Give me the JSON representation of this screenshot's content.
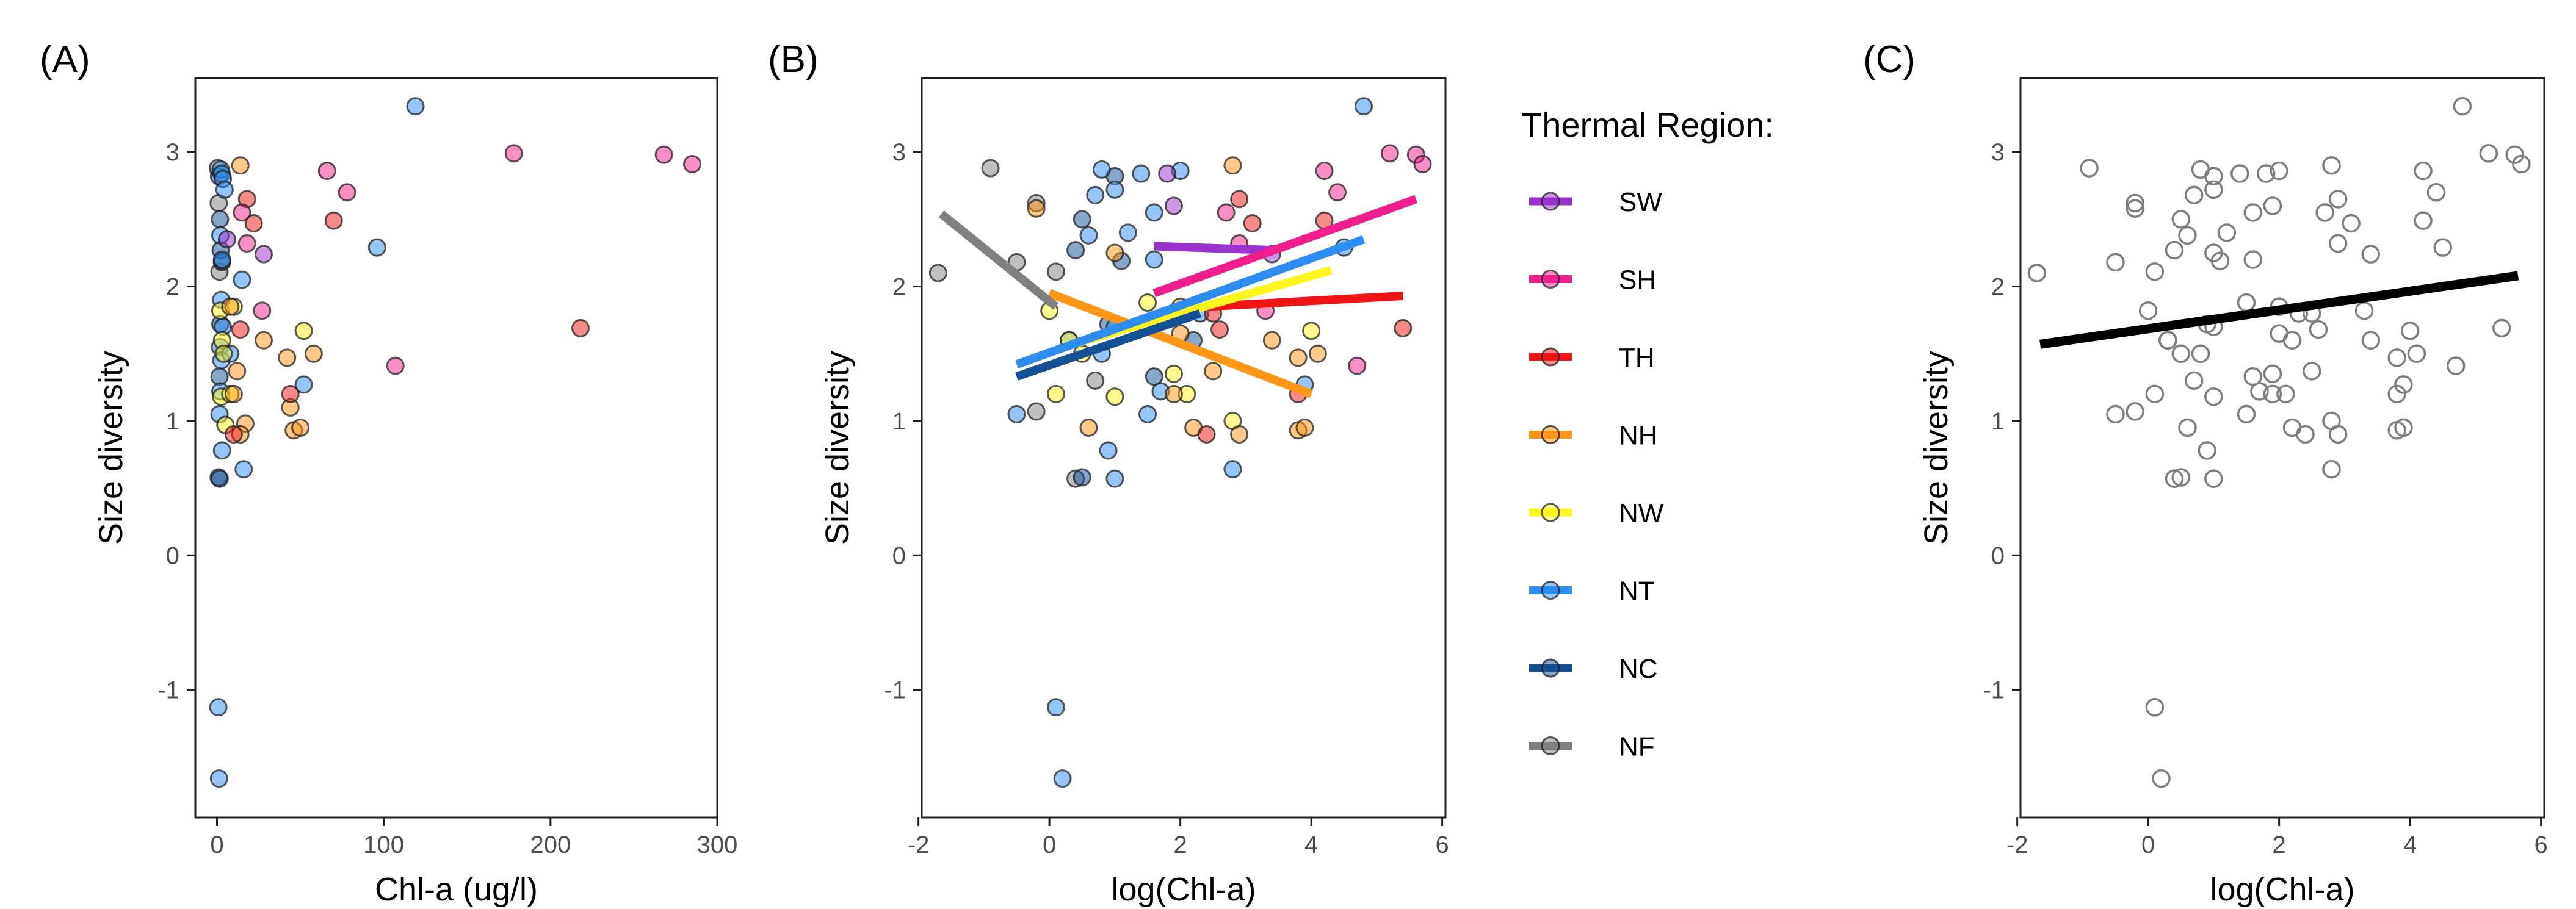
{
  "chart_data": [
    {
      "panel": "(A)",
      "type": "scatter",
      "xlabel": "Chl-a (ug/l)",
      "ylabel": "Size diversity",
      "xlim": [
        -13,
        300
      ],
      "ylim": [
        -1.95,
        3.55
      ],
      "xticks": [
        0,
        100,
        200,
        300
      ],
      "yticks": [
        -1,
        0,
        1,
        2,
        3
      ],
      "grid": false,
      "points": [
        {
          "x": 0.5,
          "y": 2.88,
          "region": "NF"
        },
        {
          "x": 1.0,
          "y": 2.62,
          "region": "NF"
        },
        {
          "x": 1.5,
          "y": 2.11,
          "region": "NF"
        },
        {
          "x": 3.0,
          "y": 2.18,
          "region": "NF"
        },
        {
          "x": 1.2,
          "y": 2.82,
          "region": "NC"
        },
        {
          "x": 1.8,
          "y": 2.5,
          "region": "NC"
        },
        {
          "x": 2.2,
          "y": 2.27,
          "region": "NC"
        },
        {
          "x": 3.0,
          "y": 2.19,
          "region": "NC"
        },
        {
          "x": 2.0,
          "y": 1.72,
          "region": "NC"
        },
        {
          "x": 1.5,
          "y": 1.33,
          "region": "NC"
        },
        {
          "x": 1.0,
          "y": 0.58,
          "region": "NC"
        },
        {
          "x": 1.6,
          "y": 0.57,
          "region": "NC"
        },
        {
          "x": 2.2,
          "y": 2.87,
          "region": "NT"
        },
        {
          "x": 2.8,
          "y": 2.84,
          "region": "NT"
        },
        {
          "x": 3.5,
          "y": 2.8,
          "region": "NT"
        },
        {
          "x": 4.5,
          "y": 2.72,
          "region": "NT"
        },
        {
          "x": 2.0,
          "y": 2.38,
          "region": "NT"
        },
        {
          "x": 3.0,
          "y": 2.2,
          "region": "NT"
        },
        {
          "x": 2.5,
          "y": 1.9,
          "region": "NT"
        },
        {
          "x": 3.5,
          "y": 1.7,
          "region": "NT"
        },
        {
          "x": 1.8,
          "y": 1.55,
          "region": "NT"
        },
        {
          "x": 2.6,
          "y": 1.45,
          "region": "NT"
        },
        {
          "x": 8.0,
          "y": 1.5,
          "region": "NT"
        },
        {
          "x": 2.0,
          "y": 1.22,
          "region": "NT"
        },
        {
          "x": 1.5,
          "y": 1.05,
          "region": "NT"
        },
        {
          "x": 3.0,
          "y": 0.78,
          "region": "NT"
        },
        {
          "x": 16.0,
          "y": 0.64,
          "region": "NT"
        },
        {
          "x": 15.0,
          "y": 2.05,
          "region": "NT"
        },
        {
          "x": 52.0,
          "y": 1.27,
          "region": "NT"
        },
        {
          "x": 96.0,
          "y": 2.29,
          "region": "NT"
        },
        {
          "x": 119.0,
          "y": 3.34,
          "region": "NT"
        },
        {
          "x": 0.8,
          "y": -1.13,
          "region": "NT"
        },
        {
          "x": 1.2,
          "y": -1.66,
          "region": "NT"
        },
        {
          "x": 2.0,
          "y": 1.82,
          "region": "NW"
        },
        {
          "x": 3.0,
          "y": 1.6,
          "region": "NW"
        },
        {
          "x": 4.0,
          "y": 1.5,
          "region": "NW"
        },
        {
          "x": 2.5,
          "y": 1.18,
          "region": "NW"
        },
        {
          "x": 5.0,
          "y": 0.97,
          "region": "NW"
        },
        {
          "x": 8.0,
          "y": 1.2,
          "region": "NW"
        },
        {
          "x": 52.0,
          "y": 1.67,
          "region": "NW"
        },
        {
          "x": 10.0,
          "y": 1.85,
          "region": "NW"
        },
        {
          "x": 14.0,
          "y": 2.9,
          "region": "NH"
        },
        {
          "x": 8.0,
          "y": 1.85,
          "region": "NH"
        },
        {
          "x": 12.0,
          "y": 1.37,
          "region": "NH"
        },
        {
          "x": 10.0,
          "y": 1.2,
          "region": "NH"
        },
        {
          "x": 17.0,
          "y": 0.98,
          "region": "NH"
        },
        {
          "x": 14.0,
          "y": 0.9,
          "region": "NH"
        },
        {
          "x": 28.0,
          "y": 1.6,
          "region": "NH"
        },
        {
          "x": 42.0,
          "y": 1.47,
          "region": "NH"
        },
        {
          "x": 58.0,
          "y": 1.5,
          "region": "NH"
        },
        {
          "x": 44.0,
          "y": 1.1,
          "region": "NH"
        },
        {
          "x": 46.0,
          "y": 0.93,
          "region": "NH"
        },
        {
          "x": 50.0,
          "y": 0.95,
          "region": "NH"
        },
        {
          "x": 18.0,
          "y": 2.65,
          "region": "TH"
        },
        {
          "x": 22.0,
          "y": 2.47,
          "region": "TH"
        },
        {
          "x": 70.0,
          "y": 2.49,
          "region": "TH"
        },
        {
          "x": 14.0,
          "y": 1.68,
          "region": "TH"
        },
        {
          "x": 44.0,
          "y": 1.2,
          "region": "TH"
        },
        {
          "x": 10.0,
          "y": 0.9,
          "region": "TH"
        },
        {
          "x": 218.0,
          "y": 1.69,
          "region": "TH"
        },
        {
          "x": 15.0,
          "y": 2.55,
          "region": "SH"
        },
        {
          "x": 18.0,
          "y": 2.32,
          "region": "SH"
        },
        {
          "x": 27.0,
          "y": 1.82,
          "region": "SH"
        },
        {
          "x": 66.0,
          "y": 2.86,
          "region": "SH"
        },
        {
          "x": 78.0,
          "y": 2.7,
          "region": "SH"
        },
        {
          "x": 107.0,
          "y": 1.41,
          "region": "SH"
        },
        {
          "x": 178.0,
          "y": 2.99,
          "region": "SH"
        },
        {
          "x": 268.0,
          "y": 2.98,
          "region": "SH"
        },
        {
          "x": 285.0,
          "y": 2.91,
          "region": "SH"
        },
        {
          "x": 6.0,
          "y": 2.35,
          "region": "SW"
        },
        {
          "x": 28.0,
          "y": 2.24,
          "region": "SW"
        }
      ]
    },
    {
      "panel": "(B)",
      "type": "scatter",
      "xlabel": "log(Chl-a)",
      "ylabel": "Size diversity",
      "xlim": [
        -1.95,
        6.05
      ],
      "ylim": [
        -1.95,
        3.55
      ],
      "xticks": [
        -2,
        0,
        2,
        4,
        6
      ],
      "yticks": [
        -1,
        0,
        1,
        2,
        3
      ],
      "grid": false,
      "fit_lines": [
        {
          "region": "SW",
          "x": [
            1.6,
            3.4
          ],
          "y": [
            2.3,
            2.27
          ]
        },
        {
          "region": "SH",
          "x": [
            1.6,
            5.6
          ],
          "y": [
            1.95,
            2.65
          ]
        },
        {
          "region": "TH",
          "x": [
            2.4,
            5.4
          ],
          "y": [
            1.85,
            1.93
          ]
        },
        {
          "region": "NH",
          "x": [
            0.0,
            4.0
          ],
          "y": [
            1.95,
            1.2
          ]
        },
        {
          "region": "NW",
          "x": [
            0.2,
            4.3
          ],
          "y": [
            1.55,
            2.12
          ]
        },
        {
          "region": "NT",
          "x": [
            -0.5,
            4.8
          ],
          "y": [
            1.42,
            2.35
          ]
        },
        {
          "region": "NC",
          "x": [
            -0.5,
            2.3
          ],
          "y": [
            1.33,
            1.8
          ]
        },
        {
          "region": "NF",
          "x": [
            -1.65,
            0.1
          ],
          "y": [
            2.54,
            1.85
          ]
        }
      ],
      "points": [
        {
          "x": -1.7,
          "y": 2.1,
          "region": "NF"
        },
        {
          "x": -0.9,
          "y": 2.88,
          "region": "NF"
        },
        {
          "x": -0.2,
          "y": 2.62,
          "region": "NF"
        },
        {
          "x": 0.1,
          "y": 2.11,
          "region": "NF"
        },
        {
          "x": -0.5,
          "y": 2.18,
          "region": "NF"
        },
        {
          "x": 0.7,
          "y": 1.3,
          "region": "NF"
        },
        {
          "x": -0.2,
          "y": 1.07,
          "region": "NF"
        },
        {
          "x": 0.4,
          "y": 0.57,
          "region": "NF"
        },
        {
          "x": 1.0,
          "y": 2.82,
          "region": "NC"
        },
        {
          "x": 0.5,
          "y": 2.5,
          "region": "NC"
        },
        {
          "x": 0.4,
          "y": 2.27,
          "region": "NC"
        },
        {
          "x": 1.1,
          "y": 2.19,
          "region": "NC"
        },
        {
          "x": 0.9,
          "y": 1.72,
          "region": "NC"
        },
        {
          "x": 1.6,
          "y": 1.33,
          "region": "NC"
        },
        {
          "x": 0.5,
          "y": 0.58,
          "region": "NC"
        },
        {
          "x": 2.2,
          "y": 1.6,
          "region": "NC"
        },
        {
          "x": 0.8,
          "y": 2.87,
          "region": "NT"
        },
        {
          "x": 1.4,
          "y": 2.84,
          "region": "NT"
        },
        {
          "x": 2.0,
          "y": 2.86,
          "region": "NT"
        },
        {
          "x": 1.0,
          "y": 2.72,
          "region": "NT"
        },
        {
          "x": 0.7,
          "y": 2.68,
          "region": "NT"
        },
        {
          "x": 1.6,
          "y": 2.55,
          "region": "NT"
        },
        {
          "x": 0.6,
          "y": 2.38,
          "region": "NT"
        },
        {
          "x": 1.2,
          "y": 2.4,
          "region": "NT"
        },
        {
          "x": 1.6,
          "y": 2.2,
          "region": "NT"
        },
        {
          "x": 2.3,
          "y": 1.8,
          "region": "NT"
        },
        {
          "x": 1.0,
          "y": 1.7,
          "region": "NT"
        },
        {
          "x": 0.3,
          "y": 1.6,
          "region": "NT"
        },
        {
          "x": 0.8,
          "y": 1.5,
          "region": "NT"
        },
        {
          "x": 1.7,
          "y": 1.22,
          "region": "NT"
        },
        {
          "x": -0.5,
          "y": 1.05,
          "region": "NT"
        },
        {
          "x": 0.9,
          "y": 0.78,
          "region": "NT"
        },
        {
          "x": 1.0,
          "y": 0.57,
          "region": "NT"
        },
        {
          "x": 2.8,
          "y": 0.64,
          "region": "NT"
        },
        {
          "x": 1.5,
          "y": 1.05,
          "region": "NT"
        },
        {
          "x": 3.9,
          "y": 1.27,
          "region": "NT"
        },
        {
          "x": 4.5,
          "y": 2.29,
          "region": "NT"
        },
        {
          "x": 4.8,
          "y": 3.34,
          "region": "NT"
        },
        {
          "x": 0.1,
          "y": -1.13,
          "region": "NT"
        },
        {
          "x": 0.2,
          "y": -1.66,
          "region": "NT"
        },
        {
          "x": 0.0,
          "y": 1.82,
          "region": "NW"
        },
        {
          "x": 0.3,
          "y": 1.6,
          "region": "NW"
        },
        {
          "x": 0.5,
          "y": 1.5,
          "region": "NW"
        },
        {
          "x": 1.0,
          "y": 1.18,
          "region": "NW"
        },
        {
          "x": 1.9,
          "y": 1.35,
          "region": "NW"
        },
        {
          "x": 2.1,
          "y": 1.2,
          "region": "NW"
        },
        {
          "x": 2.8,
          "y": 1.0,
          "region": "NW"
        },
        {
          "x": 4.0,
          "y": 1.67,
          "region": "NW"
        },
        {
          "x": 1.5,
          "y": 1.88,
          "region": "NW"
        },
        {
          "x": 0.1,
          "y": 1.2,
          "region": "NW"
        },
        {
          "x": 2.8,
          "y": 2.9,
          "region": "NH"
        },
        {
          "x": 1.0,
          "y": 2.25,
          "region": "NH"
        },
        {
          "x": 2.0,
          "y": 1.85,
          "region": "NH"
        },
        {
          "x": 2.5,
          "y": 1.37,
          "region": "NH"
        },
        {
          "x": 1.9,
          "y": 1.2,
          "region": "NH"
        },
        {
          "x": 2.9,
          "y": 0.9,
          "region": "NH"
        },
        {
          "x": 3.4,
          "y": 1.6,
          "region": "NH"
        },
        {
          "x": 3.8,
          "y": 1.47,
          "region": "NH"
        },
        {
          "x": 4.1,
          "y": 1.5,
          "region": "NH"
        },
        {
          "x": 2.2,
          "y": 0.95,
          "region": "NH"
        },
        {
          "x": 3.8,
          "y": 0.93,
          "region": "NH"
        },
        {
          "x": 3.9,
          "y": 0.95,
          "region": "NH"
        },
        {
          "x": -0.2,
          "y": 2.58,
          "region": "NH"
        },
        {
          "x": 2.0,
          "y": 1.65,
          "region": "NH"
        },
        {
          "x": 0.6,
          "y": 0.95,
          "region": "NH"
        },
        {
          "x": 2.9,
          "y": 2.65,
          "region": "TH"
        },
        {
          "x": 3.1,
          "y": 2.47,
          "region": "TH"
        },
        {
          "x": 4.2,
          "y": 2.49,
          "region": "TH"
        },
        {
          "x": 2.6,
          "y": 1.68,
          "region": "TH"
        },
        {
          "x": 3.8,
          "y": 1.2,
          "region": "TH"
        },
        {
          "x": 2.4,
          "y": 0.9,
          "region": "TH"
        },
        {
          "x": 5.4,
          "y": 1.69,
          "region": "TH"
        },
        {
          "x": 2.5,
          "y": 1.8,
          "region": "TH"
        },
        {
          "x": 2.7,
          "y": 2.55,
          "region": "SH"
        },
        {
          "x": 2.9,
          "y": 2.32,
          "region": "SH"
        },
        {
          "x": 3.3,
          "y": 1.82,
          "region": "SH"
        },
        {
          "x": 4.2,
          "y": 2.86,
          "region": "SH"
        },
        {
          "x": 4.4,
          "y": 2.7,
          "region": "SH"
        },
        {
          "x": 4.7,
          "y": 1.41,
          "region": "SH"
        },
        {
          "x": 5.2,
          "y": 2.99,
          "region": "SH"
        },
        {
          "x": 5.6,
          "y": 2.98,
          "region": "SH"
        },
        {
          "x": 5.7,
          "y": 2.91,
          "region": "SH"
        },
        {
          "x": 1.8,
          "y": 2.84,
          "region": "SW"
        },
        {
          "x": 1.9,
          "y": 2.6,
          "region": "SW"
        },
        {
          "x": 3.4,
          "y": 2.24,
          "region": "SW"
        }
      ]
    },
    {
      "panel": "(C)",
      "type": "scatter",
      "xlabel": "log(Chl-a)",
      "ylabel": "Size diversity",
      "xlim": [
        -1.95,
        6.05
      ],
      "ylim": [
        -1.95,
        3.55
      ],
      "xticks": [
        -2,
        0,
        2,
        4,
        6
      ],
      "yticks": [
        -1,
        0,
        1,
        2,
        3
      ],
      "grid": false,
      "fit_line": {
        "x": [
          -1.65,
          5.65
        ],
        "y": [
          1.57,
          2.08
        ]
      },
      "same_points_as_panel": "(B)"
    }
  ],
  "legend": {
    "title": "Thermal Region:",
    "placement": "right of panel (B)",
    "items": [
      {
        "label": "SW",
        "color": "#9A32CD"
      },
      {
        "label": "SH",
        "color": "#F01E8C"
      },
      {
        "label": "TH",
        "color": "#F01414"
      },
      {
        "label": "NH",
        "color": "#FF9614"
      },
      {
        "label": "NW",
        "color": "#FFF51E"
      },
      {
        "label": "NT",
        "color": "#2D8CF0"
      },
      {
        "label": "NC",
        "color": "#145096"
      },
      {
        "label": "NF",
        "color": "#808080"
      }
    ]
  },
  "style": {
    "point_alpha": 0.5,
    "point_stroke": "#222222",
    "open_point_stroke": "#7f7f7f",
    "fit_line_color_overall": "#000000",
    "axis_color": "#222222"
  }
}
